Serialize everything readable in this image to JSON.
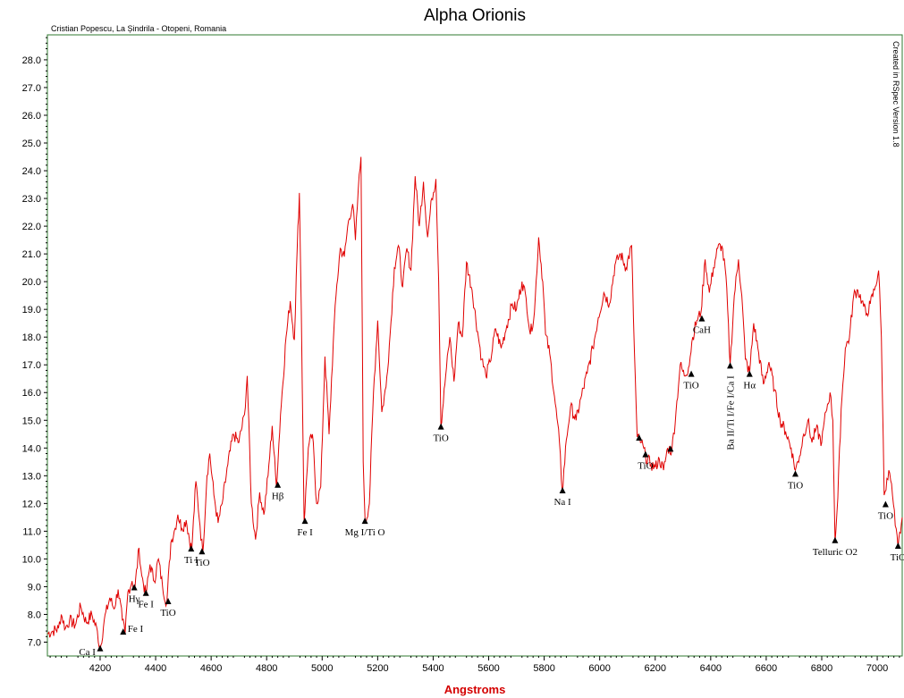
{
  "chart_data": {
    "type": "line",
    "title": "Alpha Orionis",
    "subtitle": "Cristian Popescu, La Șindrila - Otopeni, Romania",
    "side_note": "Created in RSpec Version 1.8",
    "xlabel": "Angstroms",
    "ylabel": "",
    "xlim": [
      4010,
      7090
    ],
    "ylim": [
      6.5,
      28.9
    ],
    "x_ticks": [
      4200,
      4400,
      4600,
      4800,
      5000,
      5200,
      5400,
      5600,
      5800,
      6000,
      6200,
      6400,
      6600,
      6800,
      7000
    ],
    "y_ticks": [
      "7.0",
      "8.0",
      "9.0",
      "10.0",
      "11.0",
      "12.0",
      "13.0",
      "14.0",
      "15.0",
      "16.0",
      "17.0",
      "18.0",
      "19.0",
      "20.0",
      "21.0",
      "22.0",
      "23.0",
      "24.0",
      "25.0",
      "26.0",
      "27.0",
      "28.0"
    ],
    "grid": false,
    "line_color": "#e00000",
    "frame_color": "#2f7a2f",
    "series": [
      {
        "name": "",
        "points": [
          [
            4010,
            7.3
          ],
          [
            4030,
            7.4
          ],
          [
            4050,
            7.5
          ],
          [
            4060,
            8.0
          ],
          [
            4075,
            7.5
          ],
          [
            4090,
            7.8
          ],
          [
            4110,
            7.6
          ],
          [
            4130,
            8.3
          ],
          [
            4150,
            7.7
          ],
          [
            4170,
            8.0
          ],
          [
            4190,
            7.4
          ],
          [
            4200,
            6.7
          ],
          [
            4215,
            7.8
          ],
          [
            4235,
            8.6
          ],
          [
            4250,
            8.2
          ],
          [
            4265,
            8.9
          ],
          [
            4280,
            7.8
          ],
          [
            4290,
            7.3
          ],
          [
            4300,
            8.8
          ],
          [
            4315,
            9.2
          ],
          [
            4325,
            8.9
          ],
          [
            4340,
            10.4
          ],
          [
            4350,
            9.4
          ],
          [
            4365,
            8.7
          ],
          [
            4380,
            9.8
          ],
          [
            4395,
            9.2
          ],
          [
            4410,
            10.0
          ],
          [
            4425,
            9.0
          ],
          [
            4440,
            8.4
          ],
          [
            4455,
            10.6
          ],
          [
            4470,
            11.1
          ],
          [
            4480,
            11.6
          ],
          [
            4495,
            11.1
          ],
          [
            4510,
            11.4
          ],
          [
            4530,
            10.3
          ],
          [
            4545,
            12.8
          ],
          [
            4560,
            11.2
          ],
          [
            4570,
            10.2
          ],
          [
            4585,
            13.0
          ],
          [
            4595,
            13.8
          ],
          [
            4610,
            12.3
          ],
          [
            4625,
            11.3
          ],
          [
            4640,
            12.0
          ],
          [
            4660,
            13.4
          ],
          [
            4680,
            14.5
          ],
          [
            4700,
            14.2
          ],
          [
            4720,
            15.2
          ],
          [
            4730,
            16.6
          ],
          [
            4745,
            12.0
          ],
          [
            4760,
            10.7
          ],
          [
            4775,
            12.4
          ],
          [
            4790,
            11.6
          ],
          [
            4805,
            13.0
          ],
          [
            4820,
            14.8
          ],
          [
            4835,
            12.6
          ],
          [
            4850,
            15.2
          ],
          [
            4870,
            18.0
          ],
          [
            4885,
            19.3
          ],
          [
            4900,
            17.9
          ],
          [
            4910,
            21.2
          ],
          [
            4918,
            23.2
          ],
          [
            4925,
            18.9
          ],
          [
            4935,
            11.3
          ],
          [
            4950,
            14.0
          ],
          [
            4965,
            14.5
          ],
          [
            4980,
            12.0
          ],
          [
            4995,
            12.6
          ],
          [
            5010,
            17.3
          ],
          [
            5025,
            14.5
          ],
          [
            5040,
            17.8
          ],
          [
            5050,
            19.5
          ],
          [
            5065,
            21.2
          ],
          [
            5080,
            20.9
          ],
          [
            5095,
            22.2
          ],
          [
            5110,
            22.8
          ],
          [
            5120,
            21.5
          ],
          [
            5130,
            23.3
          ],
          [
            5140,
            24.5
          ],
          [
            5148,
            13.5
          ],
          [
            5155,
            11.3
          ],
          [
            5170,
            12.0
          ],
          [
            5185,
            16.0
          ],
          [
            5200,
            18.6
          ],
          [
            5215,
            15.3
          ],
          [
            5230,
            16.2
          ],
          [
            5245,
            18.1
          ],
          [
            5260,
            20.5
          ],
          [
            5275,
            21.3
          ],
          [
            5290,
            19.8
          ],
          [
            5305,
            21.2
          ],
          [
            5320,
            20.4
          ],
          [
            5335,
            23.8
          ],
          [
            5350,
            22.0
          ],
          [
            5365,
            23.6
          ],
          [
            5380,
            21.6
          ],
          [
            5395,
            23.0
          ],
          [
            5410,
            23.7
          ],
          [
            5420,
            20.0
          ],
          [
            5428,
            14.8
          ],
          [
            5445,
            16.6
          ],
          [
            5460,
            18.0
          ],
          [
            5475,
            16.4
          ],
          [
            5490,
            18.5
          ],
          [
            5505,
            18.0
          ],
          [
            5520,
            20.7
          ],
          [
            5540,
            19.7
          ],
          [
            5560,
            18.2
          ],
          [
            5575,
            17.2
          ],
          [
            5590,
            16.6
          ],
          [
            5605,
            17.1
          ],
          [
            5625,
            18.3
          ],
          [
            5645,
            17.6
          ],
          [
            5665,
            18.4
          ],
          [
            5685,
            19.2
          ],
          [
            5700,
            19.0
          ],
          [
            5720,
            20.0
          ],
          [
            5735,
            19.4
          ],
          [
            5750,
            18.1
          ],
          [
            5765,
            18.9
          ],
          [
            5780,
            21.6
          ],
          [
            5795,
            20.0
          ],
          [
            5805,
            18.1
          ],
          [
            5820,
            17.4
          ],
          [
            5840,
            15.6
          ],
          [
            5855,
            14.2
          ],
          [
            5865,
            12.4
          ],
          [
            5880,
            14.3
          ],
          [
            5895,
            15.5
          ],
          [
            5915,
            15.0
          ],
          [
            5935,
            15.9
          ],
          [
            5955,
            16.7
          ],
          [
            5975,
            17.6
          ],
          [
            5995,
            18.7
          ],
          [
            6015,
            19.6
          ],
          [
            6035,
            19.2
          ],
          [
            6055,
            20.6
          ],
          [
            6075,
            21.0
          ],
          [
            6095,
            20.5
          ],
          [
            6115,
            21.3
          ],
          [
            6125,
            17.5
          ],
          [
            6135,
            14.4
          ],
          [
            6150,
            14.2
          ],
          [
            6165,
            13.7
          ],
          [
            6185,
            13.4
          ],
          [
            6200,
            13.3
          ],
          [
            6215,
            13.6
          ],
          [
            6230,
            13.2
          ],
          [
            6245,
            14.0
          ],
          [
            6260,
            13.9
          ],
          [
            6275,
            15.3
          ],
          [
            6290,
            17.0
          ],
          [
            6305,
            16.6
          ],
          [
            6320,
            16.9
          ],
          [
            6335,
            18.0
          ],
          [
            6350,
            18.6
          ],
          [
            6365,
            18.9
          ],
          [
            6380,
            20.8
          ],
          [
            6395,
            19.6
          ],
          [
            6410,
            20.5
          ],
          [
            6425,
            21.2
          ],
          [
            6440,
            21.3
          ],
          [
            6455,
            20.2
          ],
          [
            6470,
            17.0
          ],
          [
            6485,
            19.5
          ],
          [
            6500,
            20.8
          ],
          [
            6512,
            19.5
          ],
          [
            6525,
            17.2
          ],
          [
            6540,
            16.7
          ],
          [
            6555,
            18.5
          ],
          [
            6570,
            17.6
          ],
          [
            6590,
            16.3
          ],
          [
            6610,
            17.1
          ],
          [
            6630,
            16.1
          ],
          [
            6650,
            15.0
          ],
          [
            6670,
            14.6
          ],
          [
            6690,
            14.0
          ],
          [
            6705,
            13.2
          ],
          [
            6720,
            13.7
          ],
          [
            6735,
            14.5
          ],
          [
            6750,
            15.0
          ],
          [
            6765,
            14.2
          ],
          [
            6780,
            14.7
          ],
          [
            6800,
            14.2
          ],
          [
            6815,
            15.3
          ],
          [
            6830,
            16.0
          ],
          [
            6840,
            15.0
          ],
          [
            6848,
            10.6
          ],
          [
            6858,
            12.2
          ],
          [
            6870,
            15.4
          ],
          [
            6885,
            17.6
          ],
          [
            6900,
            18.0
          ],
          [
            6915,
            19.5
          ],
          [
            6930,
            19.7
          ],
          [
            6945,
            19.3
          ],
          [
            6960,
            18.8
          ],
          [
            6975,
            19.2
          ],
          [
            6990,
            19.7
          ],
          [
            7005,
            20.4
          ],
          [
            7015,
            18.0
          ],
          [
            7025,
            12.3
          ],
          [
            7035,
            12.9
          ],
          [
            7045,
            13.1
          ],
          [
            7055,
            12.3
          ],
          [
            7065,
            11.2
          ],
          [
            7075,
            10.4
          ],
          [
            7090,
            11.5
          ]
        ]
      }
    ],
    "annotations": [
      {
        "label": "Ca I",
        "x": 4200,
        "y": 6.7,
        "pos": "left"
      },
      {
        "label": "Fe I",
        "x": 4283,
        "y": 7.3,
        "pos": "right"
      },
      {
        "label": "Hγ",
        "x": 4323,
        "y": 8.9,
        "pos": "below"
      },
      {
        "label": "Fe I",
        "x": 4365,
        "y": 8.7,
        "pos": "below"
      },
      {
        "label": "TiO",
        "x": 4445,
        "y": 8.4,
        "pos": "below"
      },
      {
        "label": "Ti I",
        "x": 4528,
        "y": 10.3,
        "pos": "below"
      },
      {
        "label": "TiO",
        "x": 4567,
        "y": 10.2,
        "pos": "below"
      },
      {
        "label": "Hβ",
        "x": 4840,
        "y": 12.6,
        "pos": "below"
      },
      {
        "label": "Fe I",
        "x": 4938,
        "y": 11.3,
        "pos": "below"
      },
      {
        "label": "Mg I/Ti O",
        "x": 5154,
        "y": 11.3,
        "pos": "below"
      },
      {
        "label": "TiO",
        "x": 5428,
        "y": 14.7,
        "pos": "below"
      },
      {
        "label": "Na I",
        "x": 5866,
        "y": 12.4,
        "pos": "below"
      },
      {
        "label": "TiO",
        "x": 6142,
        "y": 14.3,
        "pos": "none"
      },
      {
        "label": "TiO",
        "x": 6165,
        "y": 13.7,
        "pos": "below"
      },
      {
        "label": "TiO",
        "x": 6255,
        "y": 13.9,
        "pos": "none"
      },
      {
        "label": "TiO",
        "x": 6330,
        "y": 16.6,
        "pos": "below"
      },
      {
        "label": "CaH",
        "x": 6368,
        "y": 18.6,
        "pos": "below"
      },
      {
        "label": "Ba II/Ti I/Fe I/Ca I",
        "x": 6470,
        "y": 16.9,
        "pos": "vertical"
      },
      {
        "label": "Hα",
        "x": 6540,
        "y": 16.6,
        "pos": "below"
      },
      {
        "label": "TiO",
        "x": 6705,
        "y": 13.0,
        "pos": "below"
      },
      {
        "label": "Telluric O2",
        "x": 6848,
        "y": 10.6,
        "pos": "below"
      },
      {
        "label": "TiO",
        "x": 7030,
        "y": 11.9,
        "pos": "below"
      },
      {
        "label": "TiO",
        "x": 7075,
        "y": 10.4,
        "pos": "below"
      }
    ]
  }
}
